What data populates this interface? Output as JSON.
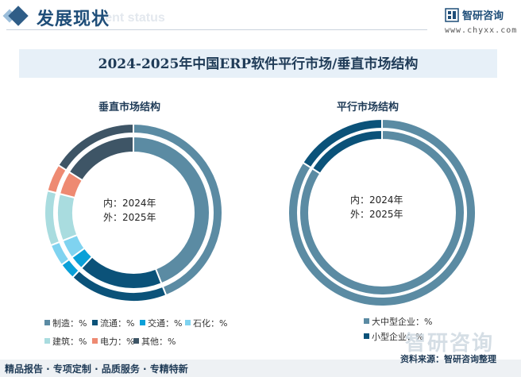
{
  "header": {
    "title": "发展现状",
    "subtitle": "ment status",
    "logo_text": "智研咨询",
    "logo_url": "www.chyxx.com"
  },
  "chart_title": "2024-2025年中国ERP软件平行市场/垂直市场结构",
  "footer": {
    "left": "精品报告 · 专项定制 · 品质服务 · 专精特新",
    "source": "资料来源：智研咨询整理",
    "watermark": "智研咨询"
  },
  "chart_data": [
    {
      "type": "pie",
      "title": "垂直市场结构",
      "center_label": [
        "内：2024年",
        "外：2025年"
      ],
      "categories": [
        "制造",
        "流通",
        "交通",
        "石化",
        "建筑",
        "电力",
        "其他"
      ],
      "colors": [
        "#5b8ba3",
        "#0b5279",
        "#0aa0d8",
        "#7fd3f0",
        "#a9dcdf",
        "#ee8a72",
        "#3e5566"
      ],
      "series": [
        {
          "name": "2024年",
          "values": [
            44,
            18,
            3,
            4,
            10,
            5,
            16
          ]
        },
        {
          "name": "2025年",
          "values": [
            44,
            18,
            3,
            4,
            10,
            5,
            16
          ]
        }
      ],
      "legend_labels": [
        "制造：%",
        "流通：%",
        "交通：%",
        "石化：%",
        "建筑：%",
        "电力：%",
        "其他：%"
      ]
    },
    {
      "type": "pie",
      "title": "平行市场结构",
      "center_label": [
        "内：2024年",
        "外：2025年"
      ],
      "categories": [
        "大中型企业",
        "小型企业"
      ],
      "colors": [
        "#5b8ba3",
        "#0b5279"
      ],
      "series": [
        {
          "name": "2024年",
          "values": [
            84,
            16
          ]
        },
        {
          "name": "2025年",
          "values": [
            84,
            16
          ]
        }
      ],
      "legend_labels": [
        "大中型企业：%",
        "小型企业：%"
      ]
    }
  ]
}
